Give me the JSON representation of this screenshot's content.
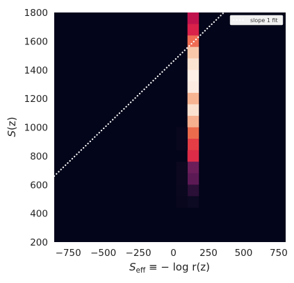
{
  "chart_data": {
    "type": "heatmap",
    "xlabel_main": "S",
    "xlabel_sub": "eff",
    "xlabel_rest": " ≡ − log r(z)",
    "ylabel_main": "S",
    "ylabel_rest": "(z)",
    "xlim": [
      -850,
      800
    ],
    "ylim": [
      200,
      1800
    ],
    "x_ticks": [
      -750,
      -500,
      -250,
      0,
      250,
      500,
      750
    ],
    "x_tick_labels": [
      "−750",
      "−500",
      "−250",
      "0",
      "250",
      "500",
      "750"
    ],
    "y_ticks": [
      200,
      400,
      600,
      800,
      1000,
      1200,
      1400,
      1600,
      1800
    ],
    "y_tick_labels": [
      "200",
      "400",
      "600",
      "800",
      "1000",
      "1200",
      "1400",
      "1600",
      "1800"
    ],
    "grid": false,
    "background_color": "#03051a",
    "colormap": "rocket",
    "bin_width": 80,
    "bin_height": 80,
    "bins": [
      {
        "x": 140,
        "y": 1760,
        "color": "#c0134e"
      },
      {
        "x": 140,
        "y": 1680,
        "color": "#d9214a"
      },
      {
        "x": 140,
        "y": 1600,
        "color": "#f06d54"
      },
      {
        "x": 140,
        "y": 1520,
        "color": "#f9c8ab"
      },
      {
        "x": 140,
        "y": 1440,
        "color": "#fbe3d2"
      },
      {
        "x": 140,
        "y": 1360,
        "color": "#fdf0e6"
      },
      {
        "x": 140,
        "y": 1280,
        "color": "#fcebe0"
      },
      {
        "x": 140,
        "y": 1200,
        "color": "#f7b493"
      },
      {
        "x": 140,
        "y": 1120,
        "color": "#fbe2d0"
      },
      {
        "x": 140,
        "y": 1040,
        "color": "#f6b090"
      },
      {
        "x": 140,
        "y": 960,
        "color": "#ed6b4d"
      },
      {
        "x": 140,
        "y": 880,
        "color": "#e53d45"
      },
      {
        "x": 140,
        "y": 800,
        "color": "#dc2c48"
      },
      {
        "x": 140,
        "y": 720,
        "color": "#6b1e5a"
      },
      {
        "x": 140,
        "y": 640,
        "color": "#5c1a55"
      },
      {
        "x": 140,
        "y": 560,
        "color": "#2a0f36"
      },
      {
        "x": 140,
        "y": 480,
        "color": "#0c0922"
      },
      {
        "x": 60,
        "y": 720,
        "color": "#0b0820"
      },
      {
        "x": 60,
        "y": 640,
        "color": "#0b0820"
      },
      {
        "x": 60,
        "y": 560,
        "color": "#0a081f"
      },
      {
        "x": 60,
        "y": 480,
        "color": "#09071e"
      },
      {
        "x": 60,
        "y": 960,
        "color": "#08071d"
      },
      {
        "x": 60,
        "y": 880,
        "color": "#08071d"
      }
    ],
    "fit_line": {
      "name": "slope 1 fit",
      "points": [
        [
          -850,
          660
        ],
        [
          360,
          1800
        ]
      ],
      "color": "#ffffff",
      "style": "dotted"
    },
    "legend": {
      "placement": "top-right",
      "entries": [
        "slope 1 fit"
      ]
    }
  }
}
